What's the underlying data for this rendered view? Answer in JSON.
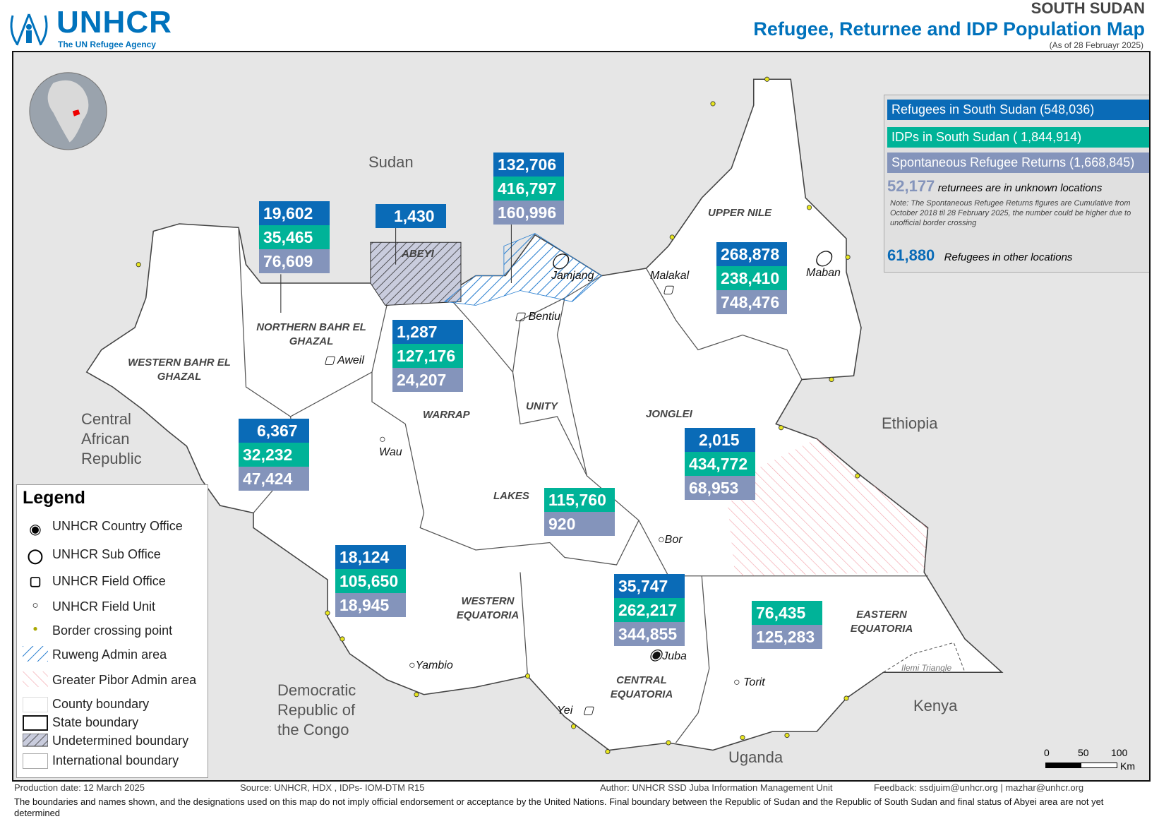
{
  "header": {
    "logo": "UNHCR",
    "logo_sub": "The UN Refugee Agency",
    "country": "SOUTH SUDAN",
    "title": "Refugee, Returnee and IDP Population  Map",
    "as_of": "(As of 28 Februayr 2025)"
  },
  "colors": {
    "refugees": "#0a6bb7",
    "idps": "#00b398",
    "returns": "#8494bb"
  },
  "summary": {
    "refugees": "Refugees in South Sudan  (548,036)",
    "idps": "IDPs in South Sudan     ( 1,844,914)",
    "returns": "Spontaneous Refugee Returns (1,668,845)",
    "unknown_value": "52,177",
    "unknown_label": "returnees are in unknown locations",
    "note": "Note: The Spontaneous Refugee Returns figures are Cumulative from October 2018 til 28 February 2025, the number could be higher due to unofficial border crossing",
    "other_value": "61,880",
    "other_label": "Refugees in other locations"
  },
  "figures": {
    "nbg": [
      "19,602",
      "35,465",
      "76,609"
    ],
    "abyei": [
      "1,430"
    ],
    "unity": [
      "132,706",
      "416,797",
      "160,996"
    ],
    "upper_nile": [
      "268,878",
      "238,410",
      "748,476"
    ],
    "warrap": [
      "1,287",
      "127,176",
      "24,207"
    ],
    "wbg": [
      "6,367",
      "32,232",
      "47,424"
    ],
    "jonglei": [
      "2,015",
      "434,772",
      "68,953"
    ],
    "lakes": [
      "115,760",
      "920"
    ],
    "we": [
      "18,124",
      "105,650",
      "18,945"
    ],
    "ce": [
      "35,747",
      "262,217",
      "344,855"
    ],
    "ee": [
      "76,435",
      "125,283"
    ]
  },
  "states": {
    "nbg": "NORTHERN BAHR EL GHAZAL",
    "abyei": "ABEYI",
    "wbg": "WESTERN BAHR EL GHAZAL",
    "warrap": "WARRAP",
    "unity": "UNITY",
    "upper_nile": "UPPER NILE",
    "jonglei": "JONGLEI",
    "lakes": "LAKES",
    "we": "WESTERN EQUATORIA",
    "ce": "CENTRAL EQUATORIA",
    "ee": "EASTERN EQUATORIA"
  },
  "towns": {
    "aweil": "Aweil",
    "wau": "Wau",
    "jamjang": "Jamjang",
    "bentiu": "Bentiu",
    "malakal": "Malakal",
    "maban": "Maban",
    "bor": "Bor",
    "juba": "Juba",
    "yei": "Yei",
    "yambio": "Yambio",
    "torit": "Torit",
    "ilemi": "Ilemi Triangle"
  },
  "countries": {
    "sudan": "Sudan",
    "ethiopia": "Ethiopia",
    "kenya": "Kenya",
    "uganda": "Uganda",
    "car": "Central African Republic",
    "drc": "Democratic Republic of the Congo"
  },
  "legend": {
    "title": "Legend",
    "items": [
      "UNHCR Country Office",
      "UNHCR Sub Office",
      "UNHCR Field Office",
      "UNHCR Field Unit",
      "Border crossing point",
      "Ruweng Admin area",
      "Greater Pibor Admin area",
      "County boundary",
      "State boundary",
      "Undetermined boundary",
      "International boundary"
    ]
  },
  "scale": {
    "ticks": [
      "0",
      "50",
      "100"
    ],
    "unit": "Km"
  },
  "footer": {
    "production": "Production date: 12 March 2025",
    "source": "Source: UNHCR, HDX , IDPs- IOM-DTM R15",
    "author": "Author: UNHCR SSD Juba Information Management Unit",
    "feedback": "Feedback: ssdjuim@unhcr.org | mazhar@unhcr.org",
    "disclaimer": "The boundaries and names shown, and the designations used on this map do not imply official endorsement or acceptance by the United Nations. Final boundary between the Republic of Sudan and the Republic of South Sudan and final status of Abyei area are not yet determined"
  }
}
